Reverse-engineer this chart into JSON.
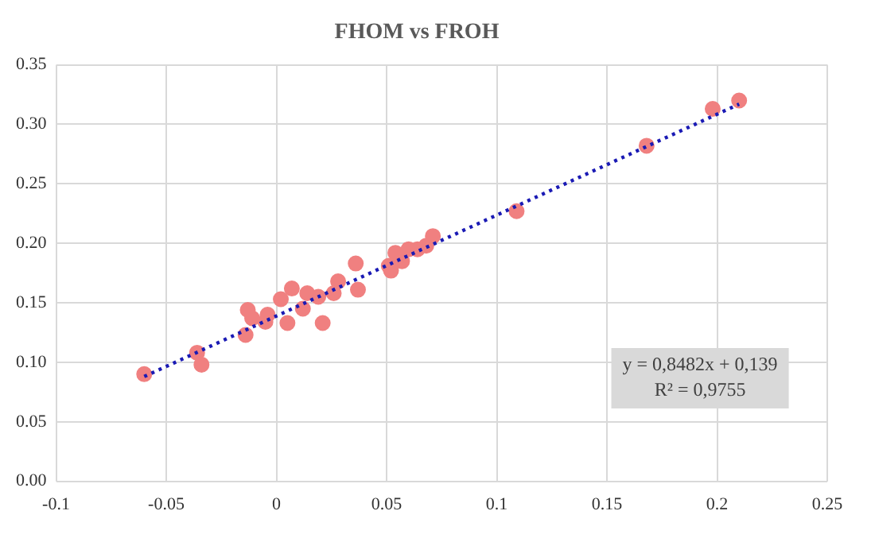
{
  "chart_data": {
    "type": "scatter",
    "title": "FHOM vs FROH",
    "grid": true,
    "legend": false,
    "marker": "circle",
    "xlim": [
      -0.1,
      0.25
    ],
    "xticks": [
      {
        "value": -0.1,
        "label": "-0.1"
      },
      -0.05,
      0,
      0.05,
      0.1,
      0.15,
      0.2,
      0.25
    ],
    "ylim": [
      0,
      0.35
    ],
    "yticks": [
      {
        "value": 0,
        "label": "0.00"
      },
      {
        "value": 0.05,
        "label": "0.05"
      },
      {
        "value": 0.1,
        "label": "0.10"
      },
      {
        "value": 0.15,
        "label": "0.15"
      },
      {
        "value": 0.2,
        "label": "0.20"
      },
      {
        "value": 0.25,
        "label": "0.25"
      },
      {
        "value": 0.3,
        "label": "0.30"
      },
      {
        "value": 0.35,
        "label": "0.35"
      }
    ],
    "series": [
      {
        "color": "#f08080",
        "x": [
          -0.06,
          -0.036,
          -0.034,
          -0.013,
          -0.011,
          -0.014,
          -0.004,
          -0.005,
          0.002,
          0.007,
          0.005,
          0.012,
          0.014,
          0.019,
          0.021,
          0.026,
          0.028,
          0.036,
          0.037,
          0.051,
          0.052,
          0.054,
          0.06,
          0.057,
          0.064,
          0.068,
          0.071,
          0.109,
          0.168,
          0.198,
          0.21
        ],
        "values": [
          0.09,
          0.108,
          0.098,
          0.144,
          0.137,
          0.123,
          0.14,
          0.134,
          0.153,
          0.162,
          0.133,
          0.145,
          0.158,
          0.155,
          0.133,
          0.158,
          0.168,
          0.183,
          0.161,
          0.181,
          0.177,
          0.192,
          0.195,
          0.185,
          0.195,
          0.198,
          0.206,
          0.227,
          0.282,
          0.313,
          0.32
        ]
      },
      {
        "type": "line",
        "color": "#1a1ab4",
        "line_style": "dotted",
        "marker": "none",
        "x": [
          -0.06,
          0.21
        ],
        "values": [
          0.088,
          0.317
        ]
      }
    ],
    "annotations": [
      "y = 0,8482x + 0,139",
      "R² = 0,9755"
    ]
  }
}
